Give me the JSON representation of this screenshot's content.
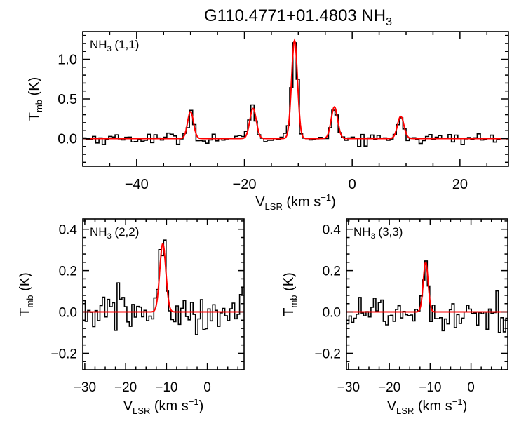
{
  "figure": {
    "title": "G110.4771+01.4803 NH",
    "title_sub": "3"
  },
  "chart_data": [
    {
      "type": "line",
      "panel": "NH3 (1,1)",
      "label_main": "NH",
      "label_sub": "3",
      "label_tail": " (1,1)",
      "xlim": [
        -50,
        29
      ],
      "ylim": [
        -0.35,
        1.35
      ],
      "xticks": [
        -40,
        -20,
        0,
        20
      ],
      "xtick_labels": [
        "−40",
        "−20",
        "0",
        "20"
      ],
      "yticks": [
        0.0,
        0.5,
        1.0
      ],
      "ytick_labels": [
        "0.0",
        "0.5",
        "1.0"
      ],
      "xlabel_main": "V",
      "xlabel_sub": "LSR",
      "xlabel_tail": " (km s",
      "xlabel_sup": "−1",
      "xlabel_close": ")",
      "ylabel_main": "T",
      "ylabel_sub": "mb",
      "ylabel_tail": " (K)",
      "noise_sigma": 0.035,
      "channel_width": 0.6,
      "series": [
        {
          "name": "spectrum",
          "color": "#000000",
          "style": "step"
        },
        {
          "name": "fit",
          "color": "#ff0000",
          "style": "line",
          "components": [
            {
              "center": -30.0,
              "amplitude": 0.34,
              "width": 0.55
            },
            {
              "center": -18.4,
              "amplitude": 0.38,
              "width": 0.6
            },
            {
              "center": -10.7,
              "amplitude": 1.24,
              "width": 0.55
            },
            {
              "center": -3.3,
              "amplitude": 0.4,
              "width": 0.6
            },
            {
              "center": 9.0,
              "amplitude": 0.28,
              "width": 0.6
            }
          ]
        }
      ]
    },
    {
      "type": "line",
      "panel": "NH3 (2,2)",
      "label_main": "NH",
      "label_sub": "3",
      "label_tail": " (2,2)",
      "xlim": [
        -30.5,
        9
      ],
      "ylim": [
        -0.28,
        0.45
      ],
      "xticks": [
        -30,
        -20,
        -10,
        0
      ],
      "xtick_labels": [
        "−30",
        "−20",
        "−10",
        "0"
      ],
      "yticks": [
        -0.2,
        0.0,
        0.2,
        0.4
      ],
      "ytick_labels": [
        "−0.2",
        "0.0",
        "0.2",
        "0.4"
      ],
      "xlabel_main": "V",
      "xlabel_sub": "LSR",
      "xlabel_tail": " (km s",
      "xlabel_sup": "−1",
      "xlabel_close": ")",
      "ylabel_main": "T",
      "ylabel_sub": "mb",
      "ylabel_tail": " (K)",
      "noise_sigma": 0.055,
      "channel_width": 0.6,
      "series": [
        {
          "name": "spectrum",
          "color": "#000000",
          "style": "step"
        },
        {
          "name": "fit",
          "color": "#ff0000",
          "style": "line",
          "components": [
            {
              "center": -10.9,
              "amplitude": 0.33,
              "width": 0.75
            }
          ]
        }
      ]
    },
    {
      "type": "line",
      "panel": "NH3 (3,3)",
      "label_main": "NH",
      "label_sub": "3",
      "label_tail": " (3,3)",
      "xlim": [
        -30.5,
        9
      ],
      "ylim": [
        -0.28,
        0.45
      ],
      "xticks": [
        -30,
        -20,
        -10,
        0
      ],
      "xtick_labels": [
        "−30",
        "−20",
        "−10",
        "0"
      ],
      "yticks": [
        -0.2,
        0.0,
        0.2,
        0.4
      ],
      "ytick_labels": [
        "−0.2",
        "0.0",
        "0.2",
        "0.4"
      ],
      "xlabel_main": "V",
      "xlabel_sub": "LSR",
      "xlabel_tail": " (km s",
      "xlabel_sup": "−1",
      "xlabel_close": ")",
      "ylabel_main": "T",
      "ylabel_sub": "mb",
      "ylabel_tail": " (K)",
      "noise_sigma": 0.05,
      "channel_width": 0.6,
      "series": [
        {
          "name": "spectrum",
          "color": "#000000",
          "style": "step"
        },
        {
          "name": "fit",
          "color": "#ff0000",
          "style": "line",
          "components": [
            {
              "center": -11.1,
              "amplitude": 0.24,
              "width": 0.6
            }
          ]
        }
      ]
    }
  ]
}
